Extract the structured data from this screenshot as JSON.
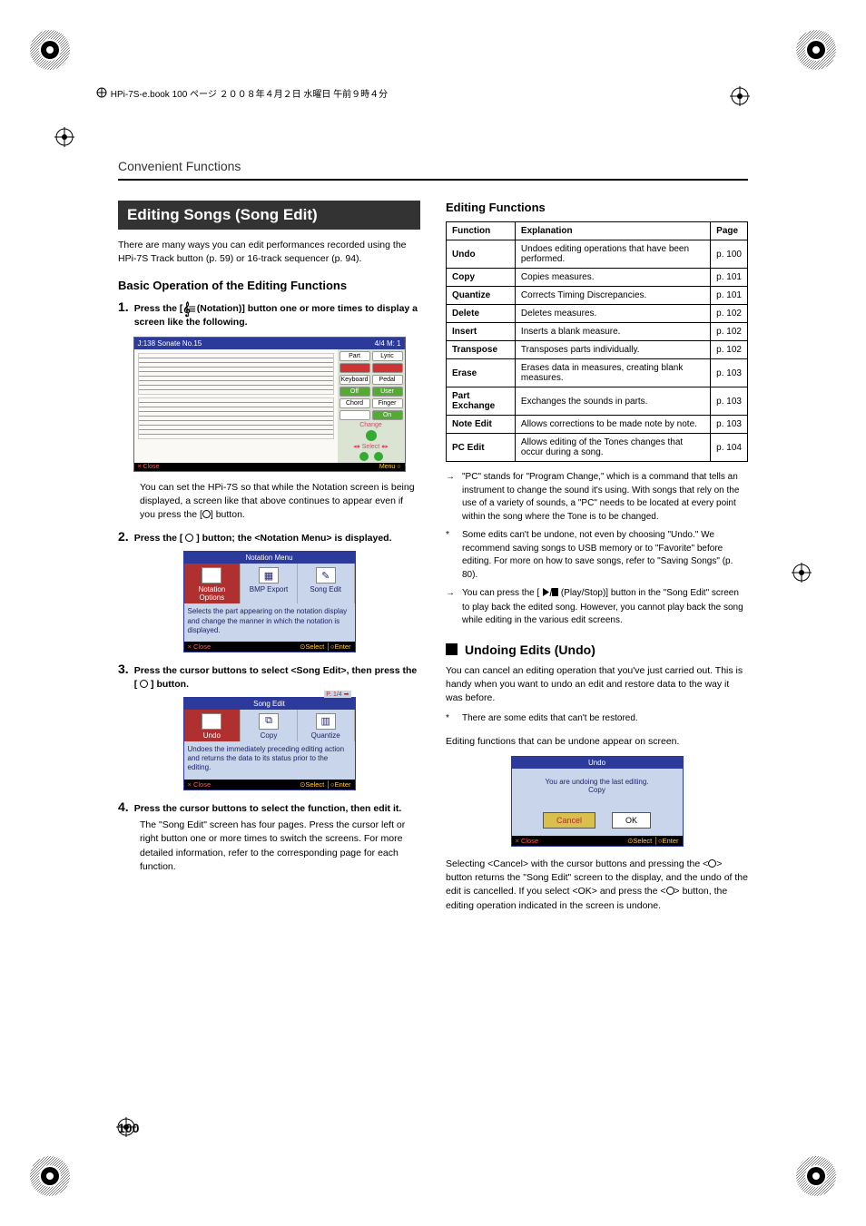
{
  "meta": {
    "header_line": "HPi-7S-e.book  100 ページ  ２００８年４月２日  水曜日  午前９時４分",
    "page_number": "100",
    "chapter": "Convenient Functions"
  },
  "left": {
    "banner": "Editing Songs (Song Edit)",
    "intro": "There are many ways you can edit performances recorded using the HPi-7S Track button (p. 59) or 16-track sequencer (p. 94).",
    "subhead1": "Basic Operation of the Editing Functions",
    "step1_pre": "Press the [",
    "step1_post": " (Notation)] button one or more times to display a screen like the following.",
    "ss1": {
      "title_left": "J:138 Sonate No.15",
      "title_right": "4/4  M:  1",
      "side_part": "Part",
      "side_lyric": "Lyric",
      "side_kb": "Keyboard",
      "side_pedal": "Pedal",
      "side_off": "Off",
      "side_user": "User",
      "side_chord": "Chord",
      "side_finger": "Finger",
      "side_on": "On",
      "change": "Change",
      "select": "Select",
      "foot_close": "× Close",
      "foot_menu": "Menu ○"
    },
    "step1_note": "You can set the HPi-7S so that while the Notation screen is being displayed, a screen like that above continues to appear even if you press the [",
    "step1_note_post": "] button.",
    "step2": "Press the [",
    "step2_post": "] button; the <Notation Menu> is displayed.",
    "ss2": {
      "title": "Notation Menu",
      "opt1": "Notation Options",
      "opt2": "BMP Export",
      "opt3": "Song Edit",
      "desc": "Selects the part appearing on the notation display and change the manner in which the notation is displayed.",
      "close": "× Close",
      "select_enter": "⊙Select │○Enter"
    },
    "step3": "Press the cursor buttons to select <Song Edit>, then press the [",
    "step3_post": "] button.",
    "ss3": {
      "title": "Song Edit",
      "page": "P. 1/4 ➡",
      "opt1": "Undo",
      "opt2": "Copy",
      "opt3": "Quantize",
      "desc": "Undoes the immediately preceding editing action and returns the data to its status prior to the editing.",
      "close": "× Close",
      "select_enter": "⊙Select │○Enter"
    },
    "step4": "Press the cursor buttons to select the function, then edit it.",
    "step4_body": "The \"Song Edit\" screen has four pages. Press the cursor left or right button one or more times to switch the screens. For more detailed information, refer to the corresponding page for each function."
  },
  "right": {
    "subhead": "Editing Functions",
    "table_headers": {
      "c1": "Function",
      "c2": "Explanation",
      "c3": "Page"
    },
    "rows": [
      {
        "f": "Undo",
        "e": "Undoes editing operations that have been performed.",
        "p": "p. 100"
      },
      {
        "f": "Copy",
        "e": "Copies measures.",
        "p": "p. 101"
      },
      {
        "f": "Quantize",
        "e": "Corrects Timing Discrepancies.",
        "p": "p. 101"
      },
      {
        "f": "Delete",
        "e": "Deletes measures.",
        "p": "p. 102"
      },
      {
        "f": "Insert",
        "e": "Inserts a blank measure.",
        "p": "p. 102"
      },
      {
        "f": "Transpose",
        "e": "Transposes parts individually.",
        "p": "p. 102"
      },
      {
        "f": "Erase",
        "e": "Erases data in measures, creating blank measures.",
        "p": "p. 103"
      },
      {
        "f": "Part Exchange",
        "e": "Exchanges the sounds in parts.",
        "p": "p. 103"
      },
      {
        "f": "Note Edit",
        "e": "Allows corrections to be made note by note.",
        "p": "p. 103"
      },
      {
        "f": "PC Edit",
        "e": "Allows editing of the Tones changes that occur during a song.",
        "p": "p. 104"
      }
    ],
    "note1": "\"PC\" stands for \"Program Change,\" which is a command that tells an instrument to change the sound it's using. With songs that rely on the use of a variety of sounds, a \"PC\" needs to be located at every point within the song where the Tone is to be changed.",
    "note2": "Some edits can't be undone, not even by choosing \"Undo.\" We recommend saving songs to USB memory or to \"Favorite\" before editing. For more on how to save songs, refer to \"Saving Songs\" (p. 80).",
    "note3_pre": "You can press the [",
    "note3_post": " (Play/Stop)] button in the \"Song Edit\" screen to play back the edited song. However, you cannot play back the song while editing in the various edit screens.",
    "undo_head": "Undoing Edits (Undo)",
    "undo_p1": "You can cancel an editing operation that you've just carried out. This is handy when you want to undo an edit and restore data to the way it was before.",
    "undo_note": "There are some edits that can't be restored.",
    "undo_p2": "Editing functions that can be undone appear on screen.",
    "ss4": {
      "title": "Undo",
      "msg": "You are undoing the last editing.",
      "sub": "Copy",
      "cancel": "Cancel",
      "ok": "OK",
      "close": "× Close",
      "select_enter": "⊙Select │○Enter"
    },
    "undo_p3_a": "Selecting <Cancel> with the cursor buttons and pressing the <",
    "undo_p3_b": "> button returns the \"Song Edit\" screen to the display, and the undo of the edit is cancelled. If you select <OK> and press the <",
    "undo_p3_c": "> button, the editing operation indicated in the screen is undone."
  }
}
